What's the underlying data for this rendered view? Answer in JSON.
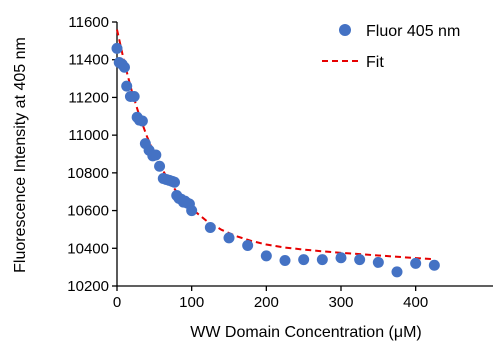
{
  "chart_data": {
    "type": "scatter",
    "xlabel": "WW Domain Concentration (μM)",
    "ylabel": "Fluorescence Intensity at 405 nm",
    "xlim": [
      0,
      450
    ],
    "ylim": [
      10200,
      11600
    ],
    "x_ticks": [
      0,
      100,
      200,
      300,
      400
    ],
    "y_ticks": [
      10200,
      10400,
      10600,
      10800,
      11000,
      11200,
      11400,
      11600
    ],
    "legend_position": "top-right",
    "series": [
      {
        "name": "Fluor 405 nm",
        "kind": "points",
        "color": "#4472C4",
        "points": [
          [
            0,
            11460
          ],
          [
            3,
            11385
          ],
          [
            7,
            11375
          ],
          [
            10,
            11360
          ],
          [
            13,
            11260
          ],
          [
            18,
            11205
          ],
          [
            23,
            11205
          ],
          [
            27,
            11095
          ],
          [
            30,
            11080
          ],
          [
            34,
            11075
          ],
          [
            38,
            10955
          ],
          [
            43,
            10920
          ],
          [
            48,
            10890
          ],
          [
            52,
            10895
          ],
          [
            57,
            10835
          ],
          [
            62,
            10770
          ],
          [
            66,
            10765
          ],
          [
            70,
            10760
          ],
          [
            74,
            10755
          ],
          [
            77,
            10750
          ],
          [
            80,
            10680
          ],
          [
            83,
            10665
          ],
          [
            86,
            10660
          ],
          [
            89,
            10645
          ],
          [
            91,
            10650
          ],
          [
            94,
            10640
          ],
          [
            97,
            10635
          ],
          [
            100,
            10600
          ],
          [
            125,
            10510
          ],
          [
            150,
            10455
          ],
          [
            175,
            10415
          ],
          [
            200,
            10360
          ],
          [
            225,
            10335
          ],
          [
            250,
            10340
          ],
          [
            275,
            10340
          ],
          [
            300,
            10350
          ],
          [
            325,
            10340
          ],
          [
            350,
            10325
          ],
          [
            375,
            10275
          ],
          [
            400,
            10320
          ],
          [
            425,
            10310
          ]
        ]
      },
      {
        "name": "Fit",
        "kind": "dashed-line",
        "color": "#E60000",
        "points": [
          [
            0,
            11560
          ],
          [
            10,
            11382
          ],
          [
            20,
            11231
          ],
          [
            30,
            11103
          ],
          [
            40,
            10994
          ],
          [
            50,
            10901
          ],
          [
            60,
            10822
          ],
          [
            70,
            10756
          ],
          [
            80,
            10699
          ],
          [
            90,
            10651
          ],
          [
            100,
            10610
          ],
          [
            120,
            10545
          ],
          [
            140,
            10498
          ],
          [
            160,
            10464
          ],
          [
            180,
            10439
          ],
          [
            200,
            10420
          ],
          [
            225,
            10404
          ],
          [
            250,
            10393
          ],
          [
            275,
            10384
          ],
          [
            300,
            10376
          ],
          [
            325,
            10369
          ],
          [
            350,
            10362
          ],
          [
            375,
            10355
          ],
          [
            400,
            10348
          ],
          [
            425,
            10342
          ]
        ]
      }
    ]
  }
}
